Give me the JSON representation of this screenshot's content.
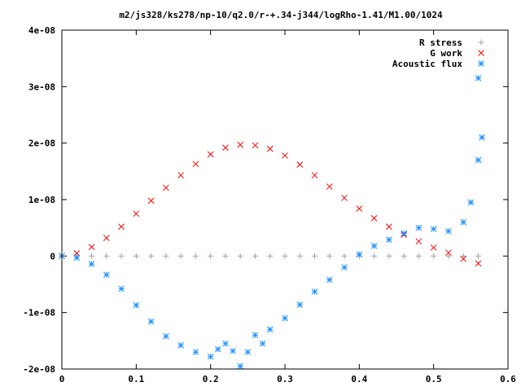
{
  "chart_data": {
    "type": "scatter",
    "title": "m2/js328/ks278/np-10/q2.0/r-+.34-j344/logRho-1.41/M1.00/1024",
    "xlabel": "",
    "ylabel": "",
    "xlim": [
      0,
      0.6
    ],
    "ylim": [
      -2e-08,
      4e-08
    ],
    "x_ticks": [
      {
        "value": 0,
        "label": "0"
      },
      {
        "value": 0.1,
        "label": "0.1"
      },
      {
        "value": 0.2,
        "label": "0.2"
      },
      {
        "value": 0.3,
        "label": "0.3"
      },
      {
        "value": 0.4,
        "label": "0.4"
      },
      {
        "value": 0.5,
        "label": "0.5"
      },
      {
        "value": 0.6,
        "label": "0.6"
      }
    ],
    "y_ticks": [
      {
        "value": -2e-08,
        "label": "-2e-08"
      },
      {
        "value": -1e-08,
        "label": "-1e-08"
      },
      {
        "value": 0,
        "label": "0"
      },
      {
        "value": 1e-08,
        "label": "1e-08"
      },
      {
        "value": 2e-08,
        "label": "2e-08"
      },
      {
        "value": 3e-08,
        "label": "3e-08"
      },
      {
        "value": 4e-08,
        "label": "4e-08"
      }
    ],
    "grid": false,
    "legend_position": "top-right",
    "series": [
      {
        "name": "R stress",
        "marker": "plus",
        "color": "#a0a0a0",
        "x": [
          0.0,
          0.02,
          0.04,
          0.06,
          0.08,
          0.1,
          0.12,
          0.14,
          0.16,
          0.18,
          0.2,
          0.22,
          0.24,
          0.26,
          0.28,
          0.3,
          0.32,
          0.34,
          0.36,
          0.38,
          0.4,
          0.42,
          0.44,
          0.46,
          0.48,
          0.5,
          0.52,
          0.54,
          0.56
        ],
        "y": [
          0,
          0,
          0,
          0,
          0,
          0,
          0,
          0,
          0,
          0,
          0,
          0,
          0,
          0,
          0,
          0,
          0,
          0,
          0,
          0,
          0,
          0,
          0,
          0,
          0,
          0,
          0,
          0,
          0
        ]
      },
      {
        "name": "G work",
        "marker": "cross",
        "color": "#ff0000",
        "x": [
          0.0,
          0.02,
          0.04,
          0.06,
          0.08,
          0.1,
          0.12,
          0.14,
          0.16,
          0.18,
          0.2,
          0.22,
          0.24,
          0.26,
          0.28,
          0.3,
          0.32,
          0.34,
          0.36,
          0.38,
          0.4,
          0.42,
          0.44,
          0.46,
          0.48,
          0.5,
          0.52,
          0.54,
          0.56
        ],
        "y": [
          0,
          5e-10,
          1.6e-09,
          3.2e-09,
          5.2e-09,
          7.5e-09,
          9.8e-09,
          1.21e-08,
          1.43e-08,
          1.63e-08,
          1.8e-08,
          1.92e-08,
          1.97e-08,
          1.96e-08,
          1.9e-08,
          1.78e-08,
          1.62e-08,
          1.43e-08,
          1.23e-08,
          1.03e-08,
          8.4e-09,
          6.7e-09,
          5.2e-09,
          3.8e-09,
          2.6e-09,
          1.5e-09,
          6e-10,
          -5e-10,
          -1.3e-09
        ]
      },
      {
        "name": "Acoustic flux",
        "marker": "star",
        "color": "#1e90ff",
        "x": [
          0.0,
          0.02,
          0.04,
          0.06,
          0.08,
          0.1,
          0.12,
          0.14,
          0.16,
          0.18,
          0.2,
          0.21,
          0.22,
          0.23,
          0.24,
          0.25,
          0.26,
          0.27,
          0.28,
          0.3,
          0.32,
          0.34,
          0.36,
          0.38,
          0.4,
          0.42,
          0.44,
          0.46,
          0.48,
          0.5,
          0.52,
          0.54,
          0.55,
          0.56,
          0.56,
          0.565
        ],
        "y": [
          0,
          -3e-10,
          -1.4e-09,
          -3.3e-09,
          -5.8e-09,
          -8.7e-09,
          -1.16e-08,
          -1.42e-08,
          -1.58e-08,
          -1.7e-08,
          -1.78e-08,
          -1.65e-08,
          -1.55e-08,
          -1.68e-08,
          -1.95e-08,
          -1.7e-08,
          -1.4e-08,
          -1.55e-08,
          -1.3e-08,
          -1.1e-08,
          -8.6e-09,
          -6.3e-09,
          -4.2e-09,
          -2e-09,
          3e-10,
          1.8e-09,
          2.9e-09,
          4e-09,
          5e-09,
          4.8e-09,
          4.4e-09,
          6e-09,
          9.5e-09,
          1.7e-08,
          3.15e-08,
          2.1e-08
        ]
      }
    ]
  }
}
